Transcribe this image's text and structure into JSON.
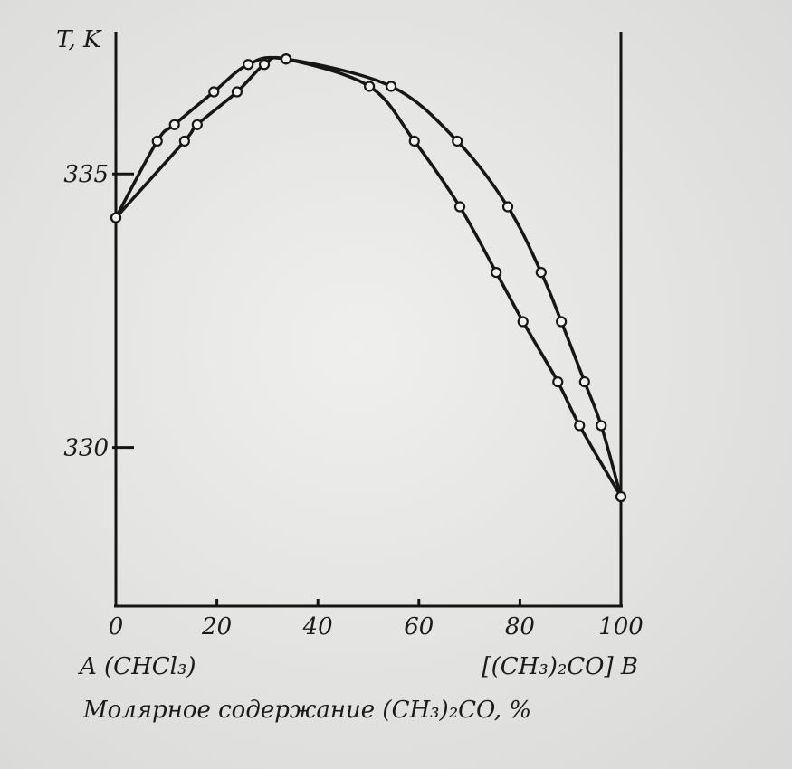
{
  "chart_data": {
    "type": "line",
    "ylabel": "T, K",
    "xlabel": "Молярное содержание (CH₃)₂CO, %",
    "left_label": "A (CHCl₃)",
    "right_label": "[(CH₃)₂CO] B",
    "xlim": [
      0,
      100
    ],
    "xticks": [
      0,
      20,
      40,
      60,
      80,
      100
    ],
    "ylim": [
      327.1,
      337.6
    ],
    "yticks": [
      330,
      335
    ],
    "color": "#161616",
    "series": [
      {
        "x": [
          0,
          8.2,
          11.6,
          19.4,
          26.2,
          33.7,
          54.5,
          67.6,
          77.6,
          84.2,
          88.2,
          92.8,
          96.1,
          100
        ],
        "values": [
          334.2,
          335.6,
          335.9,
          336.5,
          337.0,
          337.1,
          336.6,
          335.6,
          334.4,
          333.2,
          332.3,
          331.2,
          330.4,
          329.1
        ]
      },
      {
        "x": [
          0,
          13.6,
          16.1,
          24,
          29.4,
          33.7,
          50.2,
          59.1,
          68.1,
          75.3,
          80.6,
          87.5,
          91.8,
          100
        ],
        "values": [
          334.2,
          335.6,
          335.9,
          336.5,
          337.0,
          337.1,
          336.6,
          335.6,
          334.4,
          333.2,
          332.3,
          331.2,
          330.4,
          329.1
        ]
      }
    ]
  }
}
